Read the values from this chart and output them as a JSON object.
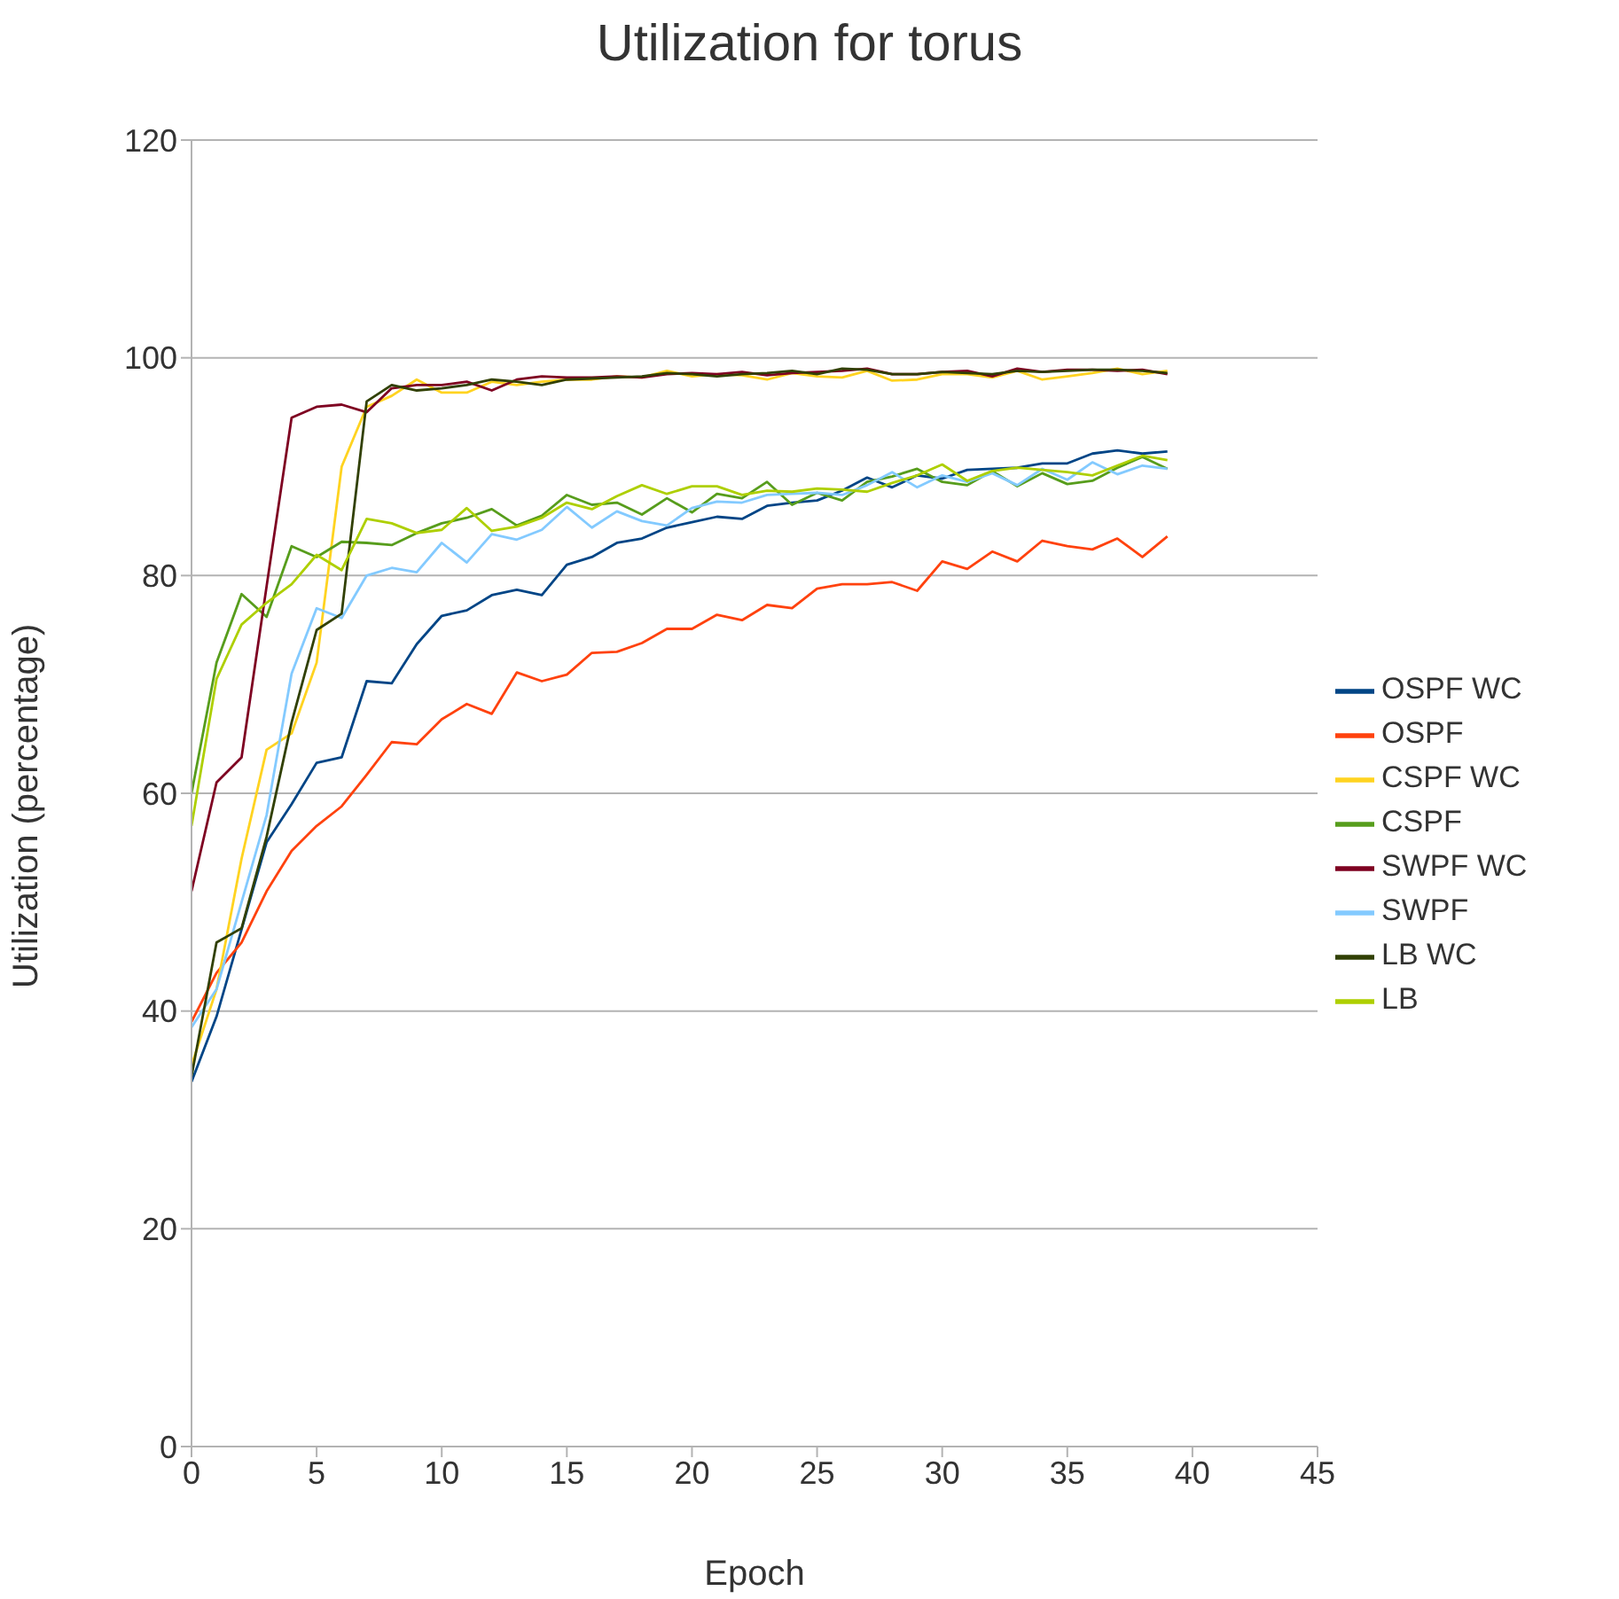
{
  "chart_data": {
    "type": "line",
    "title": "Utilization for torus",
    "xlabel": "Epoch",
    "ylabel": "Utilization (percentage)",
    "x": [
      0,
      1,
      2,
      3,
      4,
      5,
      6,
      7,
      8,
      9,
      10,
      11,
      12,
      13,
      14,
      15,
      16,
      17,
      18,
      19,
      20,
      21,
      22,
      23,
      24,
      25,
      26,
      27,
      28,
      29,
      30,
      31,
      32,
      33,
      34,
      35,
      36,
      37,
      38,
      39
    ],
    "xlim": [
      0,
      45
    ],
    "xticks": [
      0,
      5,
      10,
      15,
      20,
      25,
      30,
      35,
      40,
      45
    ],
    "ylim": [
      0,
      120
    ],
    "yticks": [
      0,
      20,
      40,
      60,
      80,
      100,
      120
    ],
    "grid": "y",
    "legend": "right",
    "marker": "none",
    "series": [
      {
        "name": "OSPF WC",
        "color": "#004586",
        "values": [
          33.5,
          39.5,
          47.5,
          55.5,
          59,
          62.8,
          63.3,
          70.3,
          70.1,
          73.7,
          76.3,
          76.8,
          78.2,
          78.7,
          78.2,
          81,
          81.7,
          83,
          83.4,
          84.4,
          84.9,
          85.4,
          85.2,
          86.4,
          86.7,
          86.9,
          87.8,
          89,
          88.1,
          89.2,
          88.9,
          89.7,
          89.8,
          89.9,
          90.3,
          90.3,
          91.2,
          91.5,
          91.2,
          91.4
        ]
      },
      {
        "name": "OSPF",
        "color": "#ff420e",
        "values": [
          39,
          43.5,
          46.3,
          51,
          54.7,
          57,
          58.8,
          61.7,
          64.7,
          64.5,
          66.8,
          68.2,
          67.3,
          71.1,
          70.3,
          70.9,
          72.9,
          73,
          73.8,
          75.1,
          75.1,
          76.4,
          75.9,
          77.3,
          77,
          78.8,
          79.2,
          79.2,
          79.4,
          78.6,
          81.3,
          80.6,
          82.2,
          81.3,
          83.2,
          82.7,
          82.4,
          83.4,
          81.7,
          83.6
        ]
      },
      {
        "name": "CSPF WC",
        "color": "#ffd320",
        "values": [
          35,
          42,
          54,
          64,
          65.5,
          72,
          90,
          95.5,
          96.5,
          98,
          96.8,
          96.8,
          97.8,
          97.5,
          97.8,
          98,
          98,
          98.3,
          98.2,
          98.8,
          98.3,
          98.5,
          98.4,
          98,
          98.6,
          98.3,
          98.2,
          98.8,
          97.9,
          98,
          98.5,
          98.5,
          98.2,
          98.8,
          98,
          98.3,
          98.6,
          99,
          98.5,
          98.8
        ]
      },
      {
        "name": "CSPF",
        "color": "#579d1c",
        "values": [
          60,
          72,
          78.3,
          76.2,
          82.7,
          81.7,
          83.1,
          83,
          82.8,
          83.9,
          84.8,
          85.3,
          86.1,
          84.6,
          85.5,
          87.4,
          86.5,
          86.7,
          85.6,
          87.1,
          85.8,
          87.5,
          87.1,
          88.6,
          86.5,
          87.6,
          86.9,
          88.6,
          89.1,
          89.8,
          88.6,
          88.3,
          89.6,
          88.2,
          89.4,
          88.4,
          88.7,
          89.9,
          90.9,
          89.8
        ]
      },
      {
        "name": "SWPF WC",
        "color": "#7e0021",
        "values": [
          51,
          61,
          63.3,
          79,
          94.5,
          95.5,
          95.7,
          95,
          97.2,
          97.5,
          97.5,
          97.8,
          97,
          98,
          98.3,
          98.2,
          98.2,
          98.3,
          98.2,
          98.5,
          98.6,
          98.5,
          98.7,
          98.4,
          98.6,
          98.7,
          98.8,
          99,
          98.5,
          98.5,
          98.7,
          98.8,
          98.3,
          99,
          98.7,
          98.9,
          98.9,
          98.8,
          98.9,
          98.5
        ]
      },
      {
        "name": "SWPF",
        "color": "#83caff",
        "values": [
          38.5,
          42,
          50,
          58,
          71,
          77,
          76.1,
          80,
          80.7,
          80.3,
          83,
          81.2,
          83.8,
          83.3,
          84.2,
          86.3,
          84.4,
          85.9,
          85,
          84.6,
          86.2,
          86.8,
          86.7,
          87.4,
          87.5,
          87.6,
          87.4,
          88.3,
          89.5,
          88.1,
          89.2,
          88.6,
          89.4,
          88.3,
          89.8,
          88.8,
          90.4,
          89.3,
          90.1,
          89.8
        ]
      },
      {
        "name": "LB WC",
        "color": "#314004",
        "values": [
          34,
          46.3,
          47.6,
          56,
          66.5,
          75,
          76.5,
          96,
          97.5,
          97,
          97.2,
          97.5,
          98,
          97.8,
          97.5,
          98,
          98.1,
          98.2,
          98.3,
          98.6,
          98.5,
          98.3,
          98.5,
          98.6,
          98.8,
          98.5,
          99,
          98.9,
          98.5,
          98.5,
          98.7,
          98.6,
          98.5,
          98.8,
          98.7,
          98.8,
          98.9,
          98.9,
          98.8,
          98.6
        ]
      },
      {
        "name": "LB",
        "color": "#aecf00",
        "values": [
          57,
          70.5,
          75.5,
          77.5,
          79.2,
          81.9,
          80.5,
          85.2,
          84.8,
          83.9,
          84.2,
          86.2,
          84.1,
          84.5,
          85.3,
          86.7,
          86.1,
          87.3,
          88.3,
          87.5,
          88.2,
          88.2,
          87.4,
          87.8,
          87.7,
          88,
          87.9,
          87.7,
          88.5,
          89.2,
          90.2,
          88.7,
          89.6,
          89.9,
          89.7,
          89.5,
          89.2,
          90.1,
          91,
          90.6
        ]
      }
    ]
  }
}
